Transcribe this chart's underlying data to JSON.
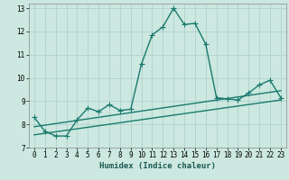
{
  "title": "",
  "xlabel": "Humidex (Indice chaleur)",
  "xlim": [
    -0.5,
    23.5
  ],
  "ylim": [
    7,
    13.2
  ],
  "yticks": [
    7,
    8,
    9,
    10,
    11,
    12,
    13
  ],
  "xticks": [
    0,
    1,
    2,
    3,
    4,
    5,
    6,
    7,
    8,
    9,
    10,
    11,
    12,
    13,
    14,
    15,
    16,
    17,
    18,
    19,
    20,
    21,
    22,
    23
  ],
  "bg_color": "#cce8e0",
  "grid_color": "#aacfc8",
  "line_color": "#1a7a6e",
  "main_x": [
    0,
    1,
    2,
    3,
    4,
    5,
    6,
    7,
    8,
    9,
    10,
    11,
    12,
    13,
    14,
    15,
    16,
    17,
    18,
    19,
    20,
    21,
    22,
    23
  ],
  "main_y": [
    8.3,
    7.7,
    7.5,
    7.5,
    8.2,
    8.7,
    8.55,
    8.85,
    8.6,
    8.65,
    10.6,
    11.85,
    12.2,
    13.0,
    12.3,
    12.35,
    11.45,
    9.15,
    9.1,
    9.05,
    9.35,
    9.7,
    9.9,
    9.15
  ],
  "line2_x": [
    0,
    23
  ],
  "line2_y": [
    7.55,
    9.05
  ],
  "line3_x": [
    0,
    23
  ],
  "line3_y": [
    7.9,
    9.45
  ],
  "marker_style": "+",
  "marker_size": 4,
  "line_width": 1.0,
  "tick_fontsize": 5.5,
  "label_fontsize": 6.5
}
